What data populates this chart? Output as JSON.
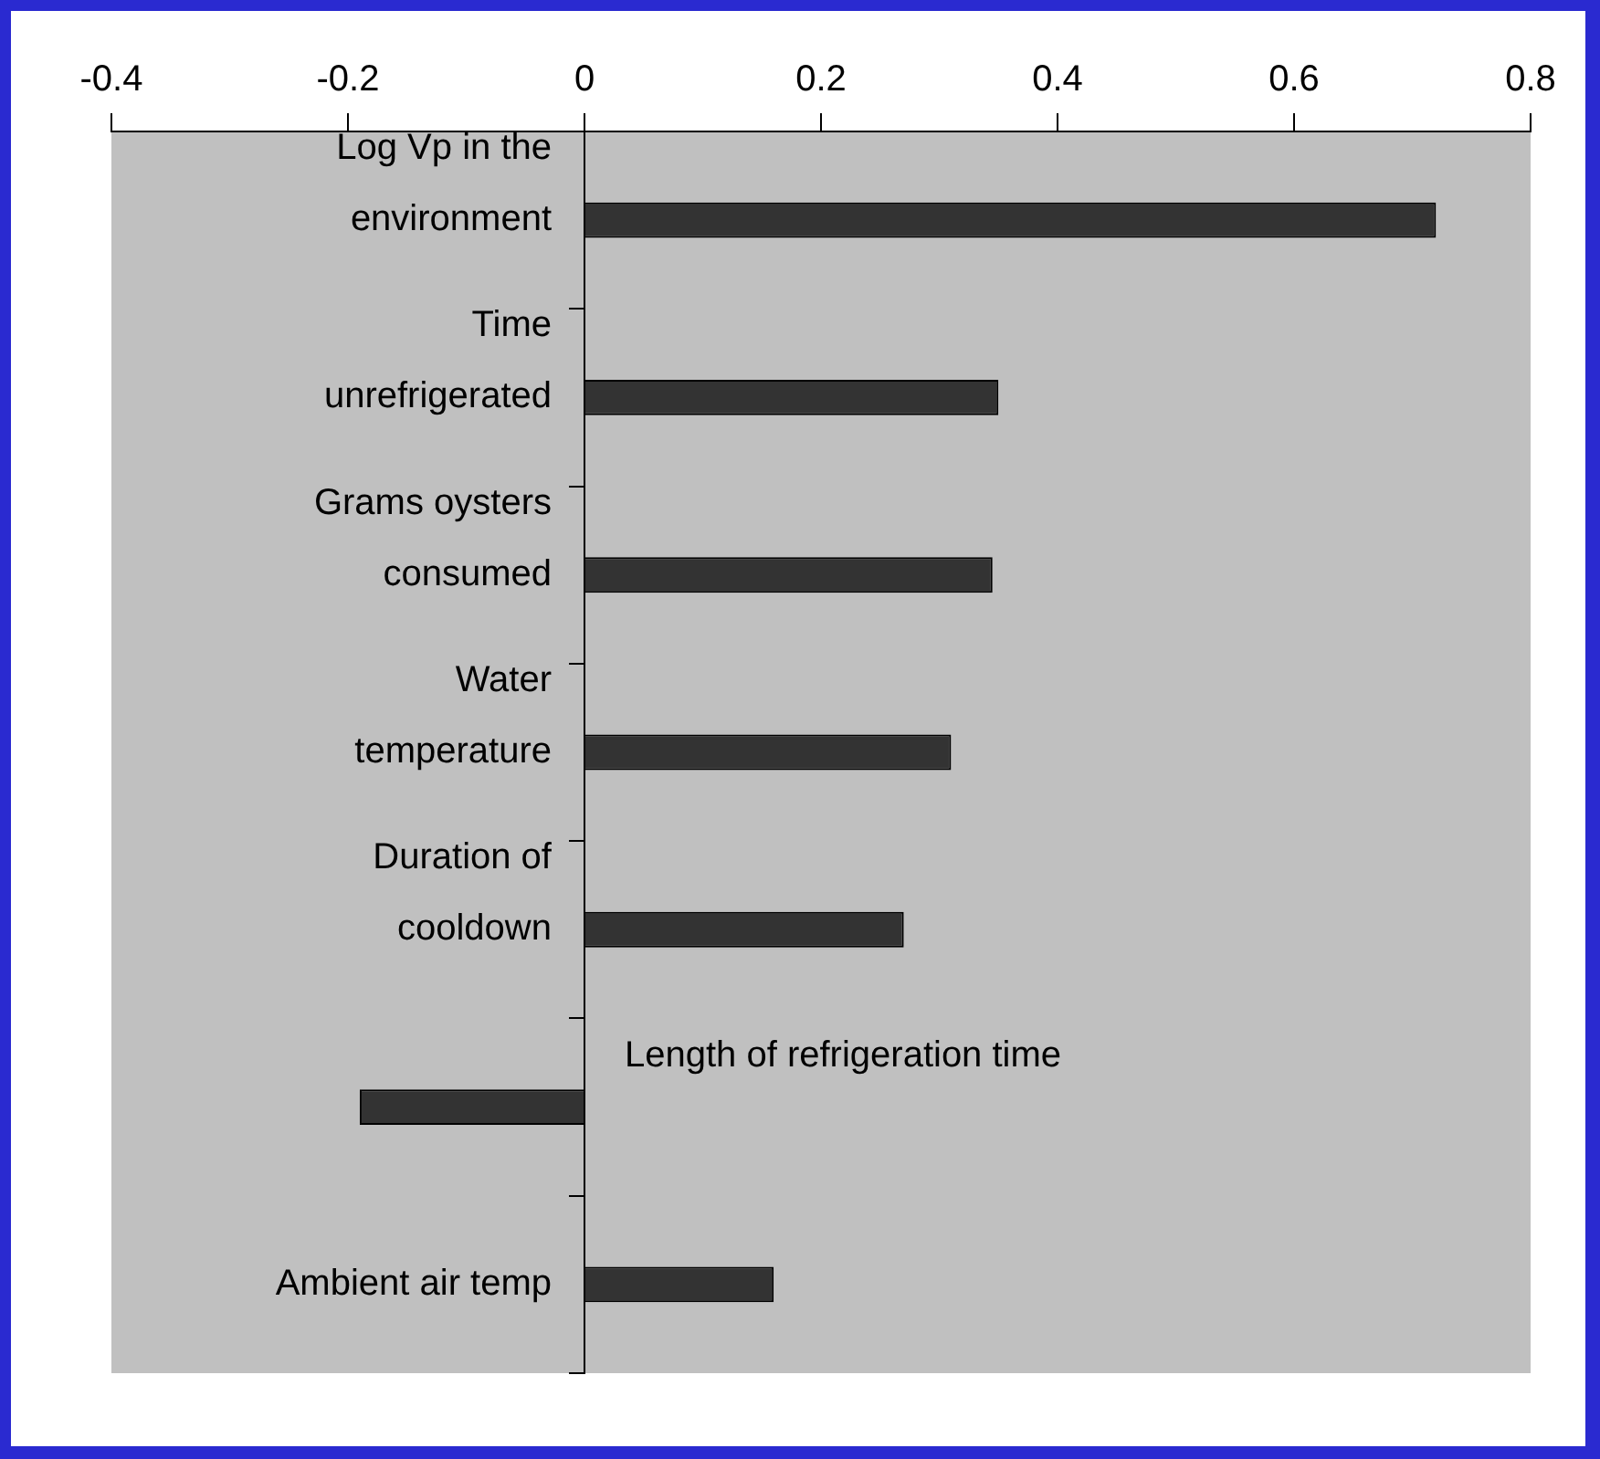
{
  "chart_data": {
    "type": "bar",
    "orientation": "horizontal",
    "categories": [
      "Log Vp in the environment",
      "Time unrefrigerated",
      "Grams oysters consumed",
      "Water temperature",
      "Duration of cooldown",
      "Length of refrigeration time",
      "Ambient air temp"
    ],
    "values": [
      0.72,
      0.35,
      0.345,
      0.31,
      0.27,
      -0.19,
      0.16
    ],
    "color": "#333333",
    "xlim": [
      -0.4,
      0.8
    ],
    "xticks": [
      -0.4,
      -0.2,
      0,
      0.2,
      0.4,
      0.6,
      0.8
    ],
    "grid": false,
    "legend": false
  }
}
